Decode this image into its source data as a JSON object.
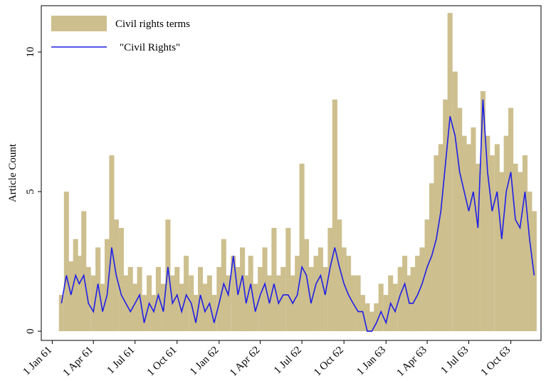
{
  "chart_data": {
    "type": "bar_line",
    "y_label": "Article Count",
    "x": [
      "1961-01-21",
      "1961-02-01",
      "1961-02-11",
      "1961-02-21",
      "1961-03-01",
      "1961-03-11",
      "1961-03-21",
      "1961-04-01",
      "1961-04-11",
      "1961-04-21",
      "1961-05-01",
      "1961-05-11",
      "1961-05-21",
      "1961-06-01",
      "1961-06-11",
      "1961-06-21",
      "1961-07-01",
      "1961-07-11",
      "1961-07-21",
      "1961-08-01",
      "1961-08-11",
      "1961-08-21",
      "1961-09-01",
      "1961-09-11",
      "1961-09-21",
      "1961-10-01",
      "1961-10-11",
      "1961-10-21",
      "1961-11-01",
      "1961-11-11",
      "1961-11-21",
      "1961-12-01",
      "1961-12-11",
      "1961-12-21",
      "1962-01-01",
      "1962-01-11",
      "1962-01-21",
      "1962-02-01",
      "1962-02-11",
      "1962-02-21",
      "1962-03-01",
      "1962-03-11",
      "1962-03-21",
      "1962-04-01",
      "1962-04-11",
      "1962-04-21",
      "1962-05-01",
      "1962-05-11",
      "1962-05-21",
      "1962-06-01",
      "1962-06-11",
      "1962-06-21",
      "1962-07-01",
      "1962-07-11",
      "1962-07-21",
      "1962-08-01",
      "1962-08-11",
      "1962-08-21",
      "1962-09-01",
      "1962-09-11",
      "1962-09-21",
      "1962-10-01",
      "1962-10-11",
      "1962-10-21",
      "1962-11-01",
      "1962-11-11",
      "1962-11-21",
      "1962-12-01",
      "1962-12-11",
      "1962-12-21",
      "1963-01-01",
      "1963-01-11",
      "1963-01-21",
      "1963-02-01",
      "1963-02-11",
      "1963-02-21",
      "1963-03-01",
      "1963-03-11",
      "1963-03-21",
      "1963-04-01",
      "1963-04-11",
      "1963-04-21",
      "1963-05-01",
      "1963-05-11",
      "1963-05-21",
      "1963-06-01",
      "1963-06-11",
      "1963-06-21",
      "1963-07-01",
      "1963-07-11",
      "1963-07-21",
      "1963-08-01",
      "1963-08-11",
      "1963-08-21",
      "1963-09-01",
      "1963-09-11",
      "1963-09-21",
      "1963-10-01",
      "1963-10-11",
      "1963-10-21",
      "1963-11-01",
      "1963-11-11",
      "1963-11-21"
    ],
    "series": [
      {
        "name": "Civil rights terms",
        "color": "#cdbf8e",
        "mark": "bar",
        "values": [
          1.3,
          5,
          2.5,
          3.3,
          2.7,
          4.3,
          2.3,
          2,
          3,
          1.7,
          3.3,
          6.3,
          4,
          3.7,
          2,
          2.3,
          1.7,
          2.3,
          1.3,
          2,
          1.3,
          2.3,
          1.7,
          4,
          2,
          2.3,
          1.7,
          2.7,
          2,
          1.3,
          2.3,
          1.7,
          2,
          1.3,
          2.3,
          3.3,
          2,
          2.7,
          2.3,
          3,
          2,
          2.7,
          1.7,
          2.3,
          3,
          2,
          3.7,
          2,
          2.3,
          3.7,
          2,
          2.7,
          6,
          3.3,
          2.3,
          2.7,
          3,
          2.3,
          3.7,
          8.3,
          4,
          3,
          2.7,
          2,
          2,
          1.3,
          1,
          0.7,
          1,
          1.7,
          1.3,
          2,
          1.7,
          2.3,
          2.7,
          2,
          2.3,
          2.7,
          3,
          4,
          5.3,
          6.3,
          6.7,
          8.3,
          11.4,
          9.3,
          8,
          7,
          6.7,
          7.3,
          6,
          8.6,
          7,
          6.3,
          6.7,
          5.7,
          7,
          8,
          6,
          5.7,
          6.3,
          5,
          4.3
        ]
      },
      {
        "name": "\"Civil Rights\"",
        "color": "#1f1fe6",
        "mark": "line",
        "values": [
          1,
          2,
          1.3,
          2,
          1.7,
          2,
          1,
          0.7,
          1.7,
          0.7,
          1.3,
          3,
          2,
          1.3,
          1,
          0.7,
          1,
          1.3,
          0.3,
          1,
          0.7,
          1.3,
          0.7,
          2.3,
          1,
          1.3,
          0.7,
          1.3,
          1,
          0.3,
          1.3,
          0.7,
          1,
          0.3,
          1,
          1.7,
          1.3,
          2.7,
          1.3,
          2,
          1,
          1.7,
          0.7,
          1.3,
          1.7,
          1,
          1.7,
          1,
          1.3,
          1.3,
          1,
          1.3,
          2.3,
          2,
          1,
          1.7,
          2,
          1.3,
          2.3,
          3,
          2.3,
          1.7,
          1.3,
          1,
          0.7,
          0.7,
          0,
          0,
          0.3,
          0.7,
          0.3,
          1,
          0.7,
          1.3,
          1.7,
          1,
          1,
          1.3,
          1.7,
          2.3,
          2.7,
          3.3,
          4.3,
          6,
          7.7,
          7,
          5.7,
          5,
          4.3,
          5,
          3.7,
          8.3,
          5.7,
          4.3,
          5,
          3.3,
          5,
          5.7,
          4,
          3.7,
          5,
          3.3,
          2
        ]
      }
    ],
    "xlim": [
      "1960-12-08",
      "1963-12-06"
    ],
    "xticks": [
      {
        "value": "1961-01-01",
        "label": "1 Jan 61"
      },
      {
        "value": "1961-04-01",
        "label": "1 Apr 61"
      },
      {
        "value": "1961-07-01",
        "label": "1 Jul 61"
      },
      {
        "value": "1961-10-01",
        "label": "1 Oct 61"
      },
      {
        "value": "1962-01-01",
        "label": "1 Jan 62"
      },
      {
        "value": "1962-04-01",
        "label": "1 Apr 62"
      },
      {
        "value": "1962-07-01",
        "label": "1 Jul 62"
      },
      {
        "value": "1962-10-01",
        "label": "1 Oct 62"
      },
      {
        "value": "1963-01-01",
        "label": "1 Jan 63"
      },
      {
        "value": "1963-04-01",
        "label": "1 Apr 63"
      },
      {
        "value": "1963-07-01",
        "label": "1 Jul 63"
      },
      {
        "value": "1963-10-01",
        "label": "1 Oct 63"
      }
    ],
    "ylim": [
      -0.33,
      11.66
    ],
    "yticks": [
      0,
      5,
      10
    ],
    "legend": "top-left"
  }
}
